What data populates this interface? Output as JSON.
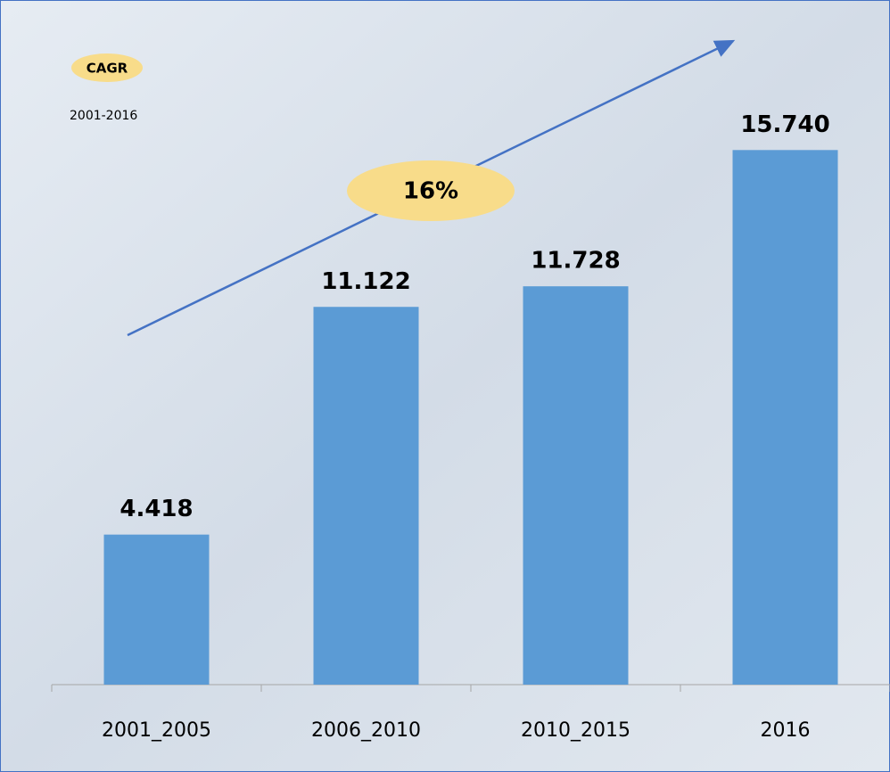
{
  "chart_data": {
    "type": "bar",
    "categories": [
      "2001_2005",
      "2006_2010",
      "2010_2015",
      "2016"
    ],
    "values": [
      4.418,
      11.122,
      11.728,
      15.74
    ],
    "value_labels": [
      "4.418",
      "11.122",
      "11.728",
      "15.740"
    ],
    "color": "#5b9bd5",
    "annotations": {
      "cagr": "CAGR",
      "period": "2001-2016",
      "rate": "16%"
    }
  }
}
